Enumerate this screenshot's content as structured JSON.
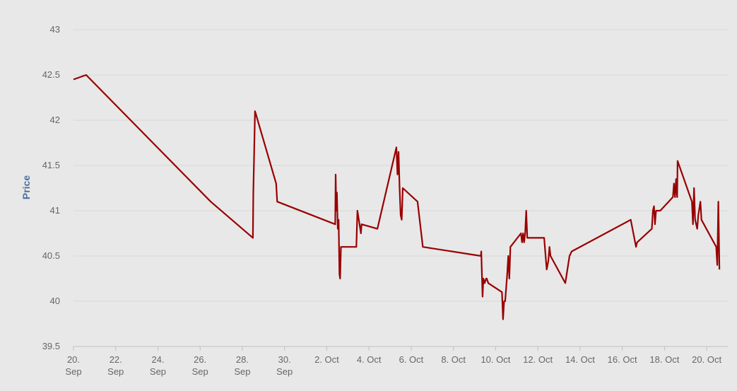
{
  "chart_data": {
    "type": "line",
    "title": "",
    "xlabel": "",
    "ylabel": "Price",
    "ylim": [
      39.5,
      43
    ],
    "y_ticks": [
      "39.5",
      "40",
      "40.5",
      "41",
      "41.5",
      "42",
      "42.5",
      "43"
    ],
    "x_ticks": [
      {
        "day": 20,
        "line1": "20.",
        "line2": "Sep"
      },
      {
        "day": 22,
        "line1": "22.",
        "line2": "Sep"
      },
      {
        "day": 24,
        "line1": "24.",
        "line2": "Sep"
      },
      {
        "day": 26,
        "line1": "26.",
        "line2": "Sep"
      },
      {
        "day": 28,
        "line1": "28.",
        "line2": "Sep"
      },
      {
        "day": 30,
        "line1": "30.",
        "line2": "Sep"
      },
      {
        "day": 32,
        "line1": "2. Oct",
        "line2": ""
      },
      {
        "day": 34,
        "line1": "4. Oct",
        "line2": ""
      },
      {
        "day": 36,
        "line1": "6. Oct",
        "line2": ""
      },
      {
        "day": 38,
        "line1": "8. Oct",
        "line2": ""
      },
      {
        "day": 40,
        "line1": "10. Oct",
        "line2": ""
      },
      {
        "day": 42,
        "line1": "12. Oct",
        "line2": ""
      },
      {
        "day": 44,
        "line1": "14. Oct",
        "line2": ""
      },
      {
        "day": 46,
        "line1": "16. Oct",
        "line2": ""
      },
      {
        "day": 48,
        "line1": "18. Oct",
        "line2": ""
      },
      {
        "day": 50,
        "line1": "20. Oct",
        "line2": ""
      }
    ],
    "grid": true,
    "legend": "none",
    "series": [
      {
        "color": "#990000",
        "points": [
          [
            20.0,
            42.45
          ],
          [
            20.6,
            42.5
          ],
          [
            26.5,
            41.1
          ],
          [
            28.5,
            40.7
          ],
          [
            28.52,
            41.2
          ],
          [
            28.6,
            42.1
          ],
          [
            29.6,
            41.3
          ],
          [
            29.65,
            41.1
          ],
          [
            32.4,
            40.85
          ],
          [
            32.42,
            41.4
          ],
          [
            32.45,
            41.0
          ],
          [
            32.48,
            41.2
          ],
          [
            32.52,
            40.8
          ],
          [
            32.56,
            40.9
          ],
          [
            32.6,
            40.3
          ],
          [
            32.63,
            40.25
          ],
          [
            32.67,
            40.6
          ],
          [
            33.4,
            40.6
          ],
          [
            33.45,
            41.0
          ],
          [
            33.55,
            40.85
          ],
          [
            33.62,
            40.75
          ],
          [
            33.65,
            40.85
          ],
          [
            34.4,
            40.8
          ],
          [
            35.3,
            41.7
          ],
          [
            35.35,
            41.4
          ],
          [
            35.4,
            41.65
          ],
          [
            35.45,
            41.25
          ],
          [
            35.5,
            40.95
          ],
          [
            35.55,
            40.9
          ],
          [
            35.6,
            41.25
          ],
          [
            36.3,
            41.1
          ],
          [
            36.55,
            40.6
          ],
          [
            39.3,
            40.5
          ],
          [
            39.32,
            40.55
          ],
          [
            39.38,
            40.05
          ],
          [
            39.42,
            40.25
          ],
          [
            39.48,
            40.2
          ],
          [
            39.55,
            40.25
          ],
          [
            39.58,
            40.25
          ],
          [
            39.65,
            40.2
          ],
          [
            40.3,
            40.1
          ],
          [
            40.35,
            39.8
          ],
          [
            40.4,
            40.0
          ],
          [
            40.45,
            40.0
          ],
          [
            40.55,
            40.3
          ],
          [
            40.6,
            40.5
          ],
          [
            40.65,
            40.25
          ],
          [
            40.7,
            40.6
          ],
          [
            41.2,
            40.75
          ],
          [
            41.25,
            40.65
          ],
          [
            41.3,
            40.75
          ],
          [
            41.35,
            40.65
          ],
          [
            41.4,
            40.75
          ],
          [
            41.45,
            41.0
          ],
          [
            41.5,
            40.7
          ],
          [
            42.3,
            40.7
          ],
          [
            42.35,
            40.55
          ],
          [
            42.42,
            40.35
          ],
          [
            42.5,
            40.45
          ],
          [
            42.55,
            40.6
          ],
          [
            42.6,
            40.5
          ],
          [
            43.3,
            40.2
          ],
          [
            43.5,
            40.5
          ],
          [
            43.6,
            40.55
          ],
          [
            46.4,
            40.9
          ],
          [
            46.65,
            40.6
          ],
          [
            46.7,
            40.65
          ],
          [
            47.4,
            40.8
          ],
          [
            47.45,
            41.0
          ],
          [
            47.5,
            41.05
          ],
          [
            47.55,
            40.85
          ],
          [
            47.6,
            41.0
          ],
          [
            47.8,
            41.0
          ],
          [
            48.4,
            41.15
          ],
          [
            48.45,
            41.3
          ],
          [
            48.5,
            41.15
          ],
          [
            48.55,
            41.35
          ],
          [
            48.6,
            41.15
          ],
          [
            48.62,
            41.55
          ],
          [
            49.3,
            41.1
          ],
          [
            49.35,
            40.85
          ],
          [
            49.4,
            41.25
          ],
          [
            49.45,
            40.9
          ],
          [
            49.55,
            40.8
          ],
          [
            49.6,
            40.95
          ],
          [
            49.7,
            41.1
          ],
          [
            49.75,
            40.9
          ],
          [
            50.45,
            40.6
          ],
          [
            50.5,
            40.4
          ],
          [
            50.55,
            41.1
          ],
          [
            50.6,
            40.35
          ]
        ]
      }
    ]
  }
}
